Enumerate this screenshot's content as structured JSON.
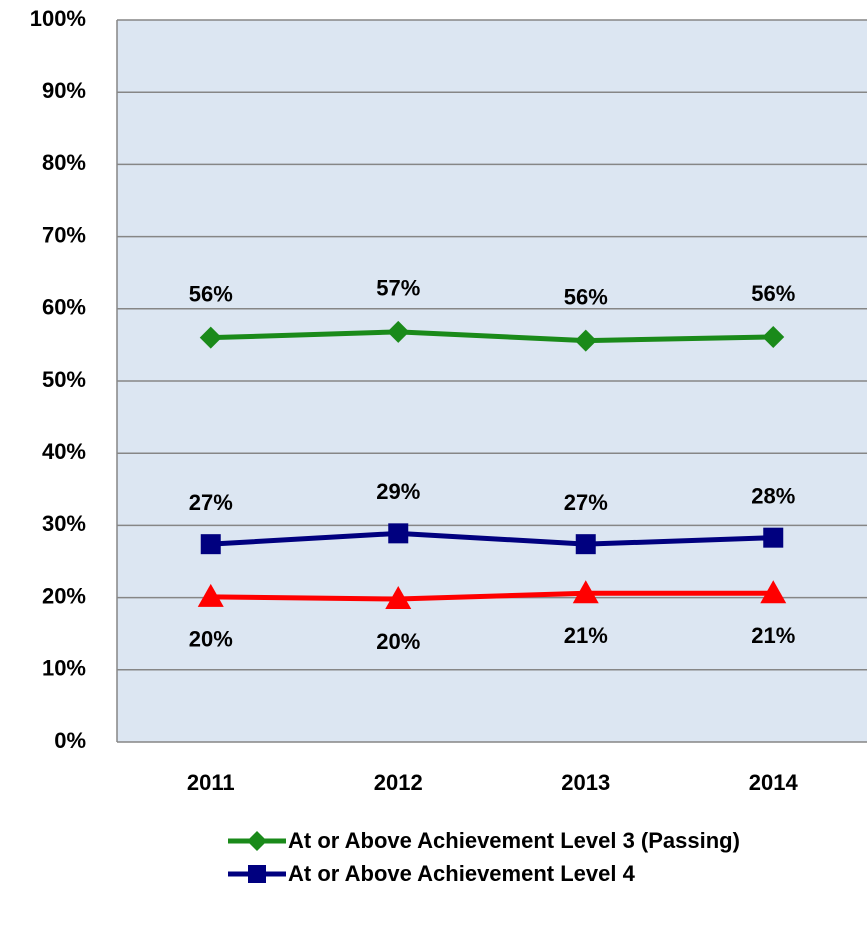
{
  "chart_data": {
    "type": "line",
    "categories": [
      "2011",
      "2012",
      "2013",
      "2014"
    ],
    "series": [
      {
        "name": "At or Above Achievement Level 3 (Passing)",
        "color": "#1a8a1a",
        "marker": "diamond",
        "values": [
          56.0,
          56.8,
          55.6,
          56.1
        ],
        "value_labels": [
          "56%",
          "57%",
          "56%",
          "56%"
        ]
      },
      {
        "name": "At or Above Achievement Level 4",
        "color": "#00007f",
        "marker": "square",
        "values": [
          27.4,
          28.9,
          27.4,
          28.3
        ],
        "value_labels": [
          "27%",
          "29%",
          "27%",
          "28%"
        ]
      },
      {
        "color": "#ff0000",
        "marker": "triangle",
        "values": [
          20.1,
          19.8,
          20.6,
          20.6
        ],
        "value_labels": [
          "20%",
          "20%",
          "21%",
          "21%"
        ]
      }
    ],
    "ylim": [
      0,
      100
    ],
    "yticks": [
      {
        "value": 0,
        "label": "0%"
      },
      {
        "value": 10,
        "label": "10%"
      },
      {
        "value": 20,
        "label": "20%"
      },
      {
        "value": 30,
        "label": "30%"
      },
      {
        "value": 40,
        "label": "40%"
      },
      {
        "value": 50,
        "label": "50%"
      },
      {
        "value": 60,
        "label": "60%"
      },
      {
        "value": 70,
        "label": "70%"
      },
      {
        "value": 80,
        "label": "80%"
      },
      {
        "value": 90,
        "label": "90%"
      },
      {
        "value": 100,
        "label": "100%"
      }
    ],
    "grid": true
  }
}
